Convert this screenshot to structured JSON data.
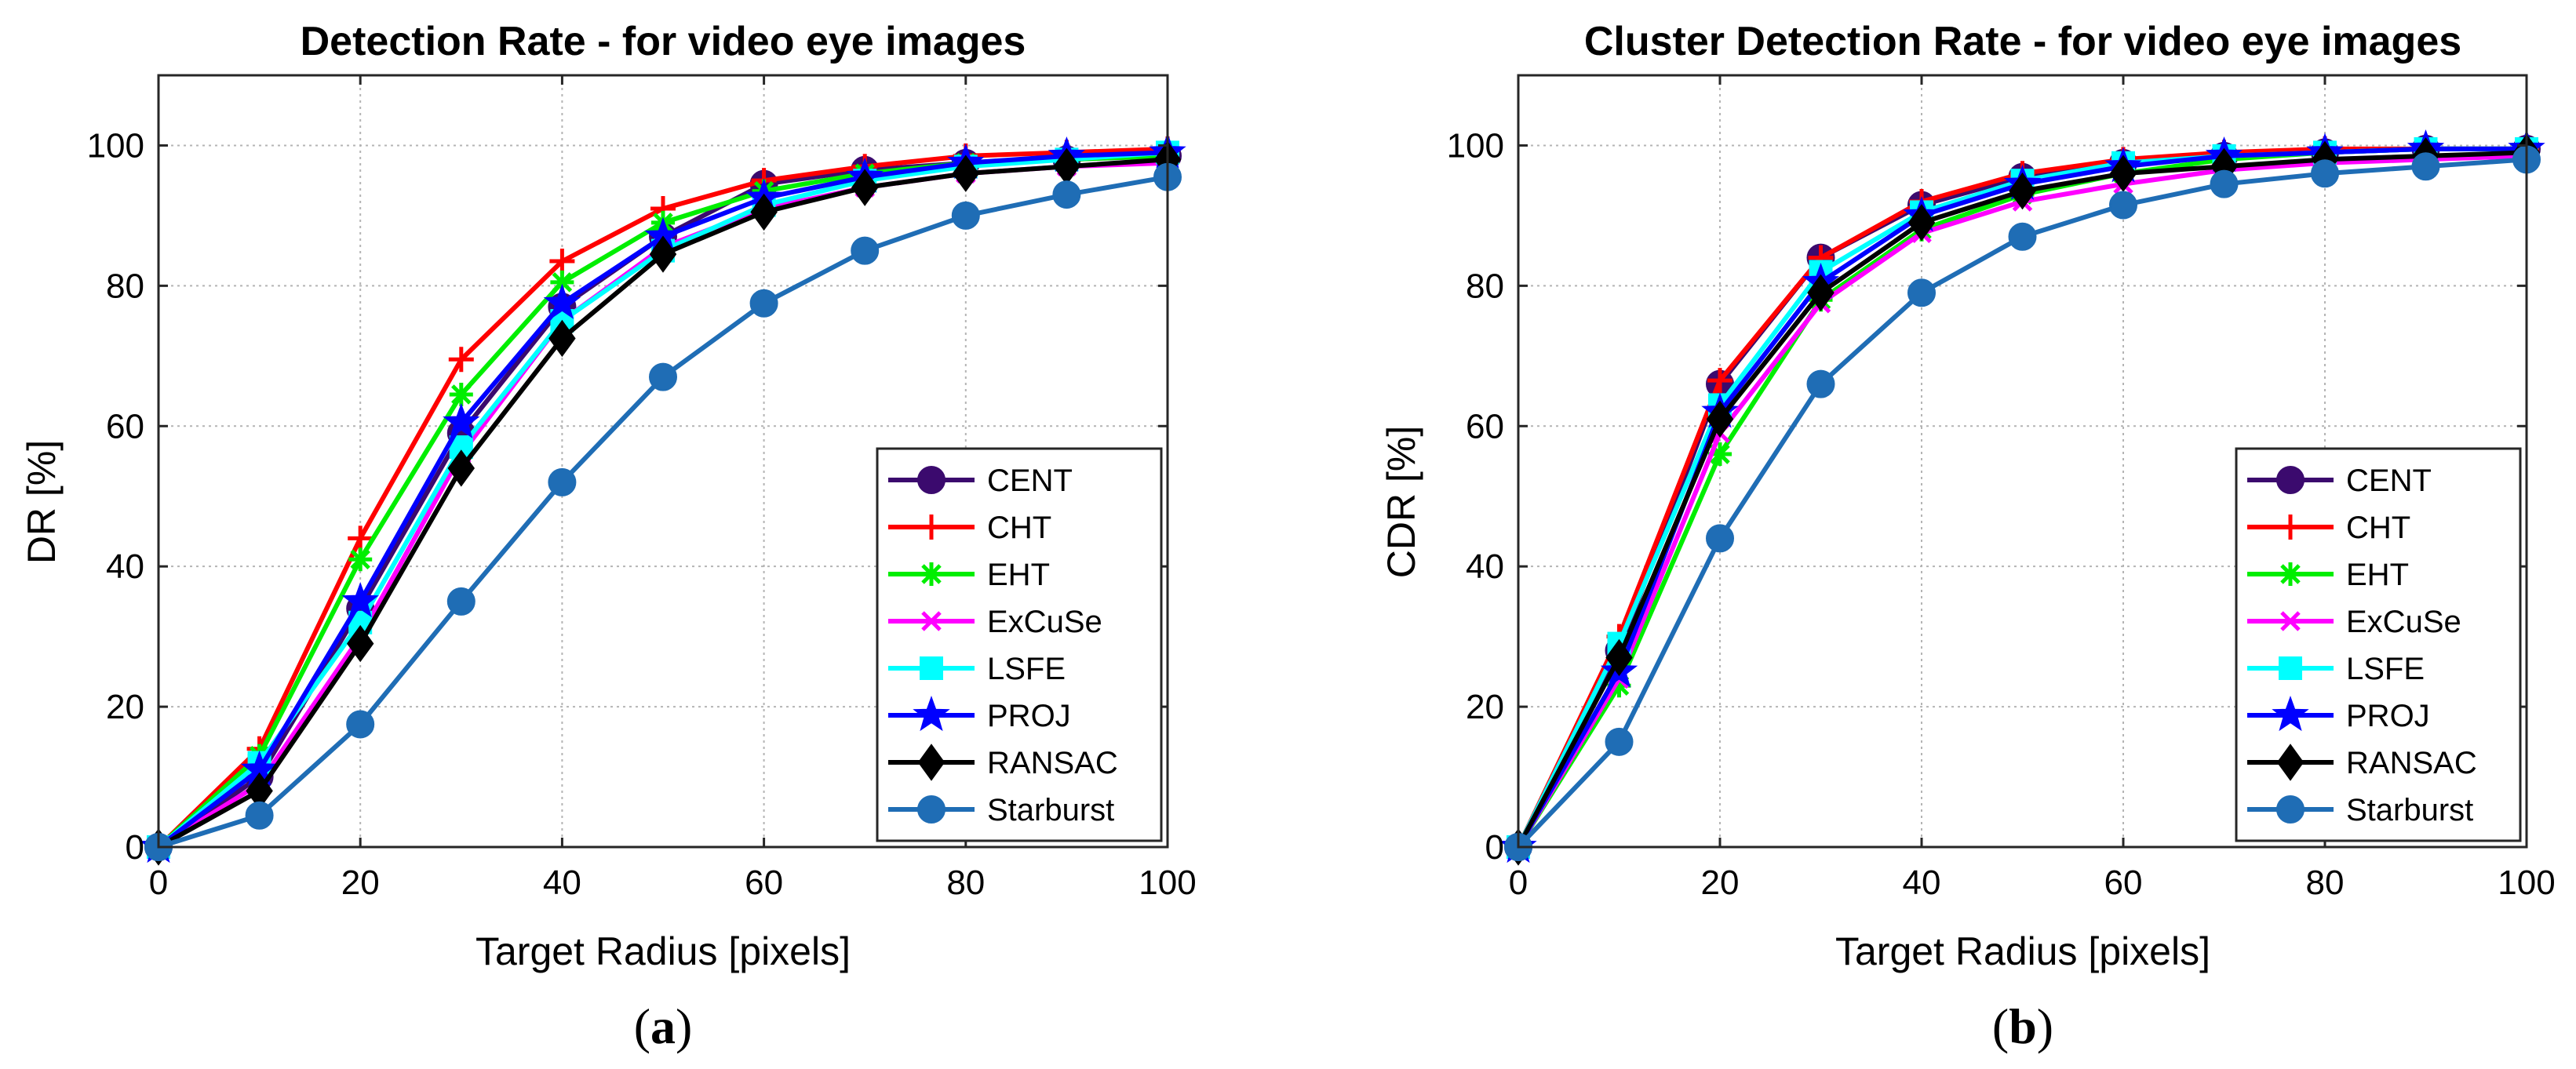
{
  "chart_data": [
    {
      "type": "line",
      "title": "Detection Rate - for video eye images",
      "xlabel": "Target Radius [pixels]",
      "ylabel": "DR [%]",
      "panel_label": "(a)",
      "panel_letter": "a",
      "xlim": [
        0,
        100
      ],
      "ylim": [
        0,
        110
      ],
      "xticks": [
        0,
        20,
        40,
        60,
        80,
        100
      ],
      "yticks": [
        0,
        20,
        40,
        60,
        80,
        100
      ],
      "grid": true,
      "legend_position": "bottom-right",
      "x": [
        0,
        10,
        20,
        30,
        40,
        50,
        60,
        70,
        80,
        90,
        100
      ],
      "series": [
        {
          "name": "CENT",
          "color": "#3b0a6e",
          "marker": "circle",
          "values": [
            0,
            10,
            34,
            59,
            77,
            87,
            94.5,
            96.5,
            97.5,
            98,
            98.5
          ]
        },
        {
          "name": "CHT",
          "color": "#ff0000",
          "marker": "plus",
          "values": [
            0,
            14,
            44,
            69.5,
            83.5,
            91,
            95,
            97,
            98.5,
            99,
            99.5
          ]
        },
        {
          "name": "EHT",
          "color": "#00ee00",
          "marker": "asterisk",
          "values": [
            0,
            13,
            41,
            64.5,
            80.5,
            89,
            93.5,
            96,
            97.5,
            98,
            98.5
          ]
        },
        {
          "name": "ExCuSe",
          "color": "#ff00ff",
          "marker": "x",
          "values": [
            0,
            9,
            30,
            56,
            75,
            85.5,
            91,
            94,
            96,
            97,
            97.5
          ]
        },
        {
          "name": "LSFE",
          "color": "#00ffff",
          "marker": "square",
          "values": [
            0,
            12,
            32,
            57,
            75,
            85,
            91.5,
            95,
            97,
            98,
            99
          ]
        },
        {
          "name": "PROJ",
          "color": "#0000ff",
          "marker": "star",
          "values": [
            0,
            11,
            35,
            60.5,
            77.5,
            87,
            92.5,
            95.5,
            97.5,
            98.5,
            99
          ]
        },
        {
          "name": "RANSAC",
          "color": "#000000",
          "marker": "diamond",
          "values": [
            0,
            8,
            29,
            54,
            72.5,
            84.5,
            90.5,
            94,
            96,
            97,
            98
          ]
        },
        {
          "name": "Starburst",
          "color": "#1f6db5",
          "marker": "circle",
          "values": [
            0,
            4.5,
            17.5,
            35,
            52,
            67,
            77.5,
            85,
            90,
            93,
            95.5
          ]
        }
      ]
    },
    {
      "type": "line",
      "title": "Cluster Detection Rate - for video eye images",
      "xlabel": "Target Radius [pixels]",
      "ylabel": "CDR [%]",
      "panel_label": "(b)",
      "panel_letter": "b",
      "xlim": [
        0,
        100
      ],
      "ylim": [
        0,
        110
      ],
      "xticks": [
        0,
        20,
        40,
        60,
        80,
        100
      ],
      "yticks": [
        0,
        20,
        40,
        60,
        80,
        100
      ],
      "grid": true,
      "legend_position": "bottom-right",
      "x": [
        0,
        10,
        20,
        30,
        40,
        50,
        60,
        70,
        80,
        90,
        100
      ],
      "series": [
        {
          "name": "CENT",
          "color": "#3b0a6e",
          "marker": "circle",
          "values": [
            0,
            28,
            66,
            84,
            91.5,
            95.5,
            97.5,
            98.5,
            99,
            99.5,
            99.5
          ]
        },
        {
          "name": "CHT",
          "color": "#ff0000",
          "marker": "plus",
          "values": [
            0,
            30,
            66.5,
            84,
            92,
            96,
            98,
            99,
            99.5,
            99.5,
            99.5
          ]
        },
        {
          "name": "EHT",
          "color": "#00ee00",
          "marker": "asterisk",
          "values": [
            0,
            23,
            56,
            78,
            88,
            93,
            96,
            98,
            99,
            99.5,
            99.5
          ]
        },
        {
          "name": "ExCuSe",
          "color": "#ff00ff",
          "marker": "x",
          "values": [
            0,
            24,
            59,
            77.5,
            87.5,
            92,
            94.5,
            96.5,
            97.5,
            98,
            98.5
          ]
        },
        {
          "name": "LSFE",
          "color": "#00ffff",
          "marker": "square",
          "values": [
            0,
            29,
            63,
            82,
            90.5,
            95,
            97.5,
            98.5,
            99,
            99.5,
            99.5
          ]
        },
        {
          "name": "PROJ",
          "color": "#0000ff",
          "marker": "star",
          "values": [
            0,
            25,
            62,
            80.5,
            90,
            94.5,
            97,
            98.5,
            99,
            99.5,
            99.5
          ]
        },
        {
          "name": "RANSAC",
          "color": "#000000",
          "marker": "diamond",
          "values": [
            0,
            27,
            61,
            79,
            89,
            93.5,
            96,
            97,
            98,
            98.5,
            99
          ]
        },
        {
          "name": "Starburst",
          "color": "#1f6db5",
          "marker": "circle",
          "values": [
            0,
            15,
            44,
            66,
            79,
            87,
            91.5,
            94.5,
            96,
            97,
            98
          ]
        }
      ]
    }
  ]
}
